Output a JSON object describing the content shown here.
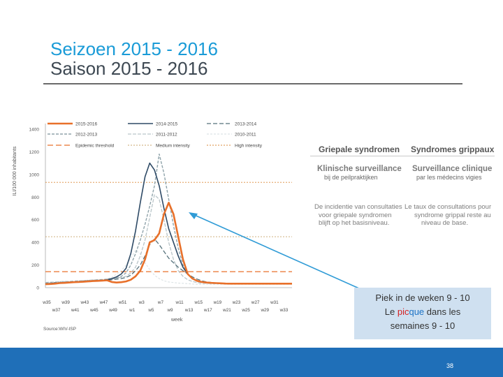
{
  "title": {
    "line1": "Seizoen 2015 - 2016",
    "line2": "Saison 2015 - 2016"
  },
  "panel": {
    "nl_title": "Griepale syndromen",
    "fr_title": "Syndromes grippaux",
    "nl_sub": "Klinische surveillance",
    "nl_subsmall": "bij de peilpraktijken",
    "fr_sub": "Surveillance clinique",
    "fr_subsmall": "par les médecins vigies",
    "nl_desc": [
      "De incidentie van consultaties",
      "voor griepale syndromen",
      "blijft op het basisniveau."
    ],
    "fr_desc": [
      "Le taux de consultations pour",
      "syndrome grippal reste au",
      "niveau de base."
    ]
  },
  "callout": {
    "line1": "Piek in de weken 9 - 10",
    "line2_a": "Le ",
    "line2_pic": "pic",
    "line2_que": "que",
    "line2_b": " dans les",
    "line3": "semaines 9 - 10"
  },
  "page_number": "38",
  "colors": {
    "s2015_2016": "#e8702a",
    "s2014_2015": "#2e4a66",
    "s2013_2014": "#55707a",
    "s2012_2013": "#8fa3aa",
    "s2011_2012": "#b9c5c9",
    "s2010_2011": "#dde4e6",
    "epidemic": "#e8702a",
    "medium": "#c9a46b",
    "high": "#d98a3a",
    "arrow": "#2f9bd6"
  },
  "chart_data": {
    "type": "line",
    "title": "",
    "ylabel": "ILI/100 000 inhabitants",
    "xlabel": "week",
    "source": "Source:WIV-ISP",
    "ylim": [
      0,
      1400
    ],
    "yticks": [
      "0",
      "200",
      "400",
      "600",
      "800",
      "1000",
      "1200",
      "1400"
    ],
    "xticks_top": [
      "w35",
      "w39",
      "w43",
      "w47",
      "w51",
      "w3",
      "w7",
      "w11",
      "w15",
      "w19",
      "w23",
      "w27",
      "w31"
    ],
    "xticks_bottom": [
      "w37",
      "w41",
      "w45",
      "w49",
      "w1",
      "w5",
      "w9",
      "w13",
      "w17",
      "w21",
      "w25",
      "w29",
      "w33"
    ],
    "n_weeks": 53,
    "legend": [
      "2015-2016",
      "2014-2015",
      "2013-2014",
      "2012-2013",
      "2011-2012",
      "2010-2011",
      "Epidemic threshold",
      "Medium intensity",
      "High intensity"
    ],
    "thresholds": {
      "epidemic": 141,
      "medium": 450,
      "high": 930
    },
    "series": [
      {
        "name": "2010-2011",
        "values": [
          40,
          42,
          45,
          48,
          50,
          50,
          52,
          55,
          58,
          60,
          62,
          65,
          70,
          80,
          90,
          120,
          150,
          200,
          260,
          330,
          300,
          220,
          160,
          110,
          80,
          60,
          50,
          45,
          40,
          38,
          35,
          32,
          30,
          30,
          30,
          30,
          30,
          30,
          30,
          30,
          30,
          30,
          30,
          30,
          30,
          30,
          30,
          30,
          30,
          30,
          30,
          30,
          30
        ]
      },
      {
        "name": "2011-2012",
        "values": [
          45,
          48,
          50,
          52,
          55,
          55,
          58,
          60,
          62,
          65,
          68,
          70,
          72,
          75,
          80,
          85,
          90,
          100,
          130,
          180,
          280,
          420,
          620,
          820,
          780,
          600,
          400,
          250,
          150,
          100,
          70,
          55,
          45,
          40,
          38,
          36,
          35,
          35,
          35,
          35,
          35,
          35,
          35,
          35,
          35,
          35,
          35,
          35,
          35,
          35,
          35,
          35,
          35
        ]
      },
      {
        "name": "2012-2013",
        "values": [
          40,
          42,
          45,
          48,
          50,
          52,
          55,
          58,
          60,
          62,
          65,
          68,
          70,
          72,
          75,
          85,
          100,
          130,
          200,
          300,
          420,
          560,
          720,
          900,
          1180,
          1010,
          780,
          550,
          350,
          200,
          120,
          80,
          60,
          50,
          45,
          40,
          38,
          36,
          35,
          35,
          35,
          35,
          35,
          35,
          35,
          35,
          35,
          35,
          35,
          35,
          35,
          35,
          35
        ]
      },
      {
        "name": "2013-2014",
        "values": [
          35,
          38,
          40,
          42,
          45,
          48,
          50,
          52,
          55,
          58,
          60,
          62,
          65,
          68,
          70,
          75,
          80,
          90,
          110,
          150,
          200,
          280,
          380,
          430,
          380,
          320,
          260,
          220,
          180,
          150,
          120,
          95,
          75,
          60,
          50,
          45,
          40,
          38,
          36,
          35,
          35,
          35,
          35,
          35,
          35,
          35,
          35,
          35,
          35,
          35,
          35,
          35,
          35
        ]
      },
      {
        "name": "2014-2015",
        "values": [
          30,
          35,
          40,
          42,
          45,
          48,
          50,
          52,
          55,
          58,
          60,
          62,
          65,
          70,
          80,
          95,
          120,
          170,
          300,
          500,
          750,
          980,
          1100,
          1040,
          900,
          700,
          520,
          400,
          280,
          180,
          120,
          80,
          60,
          50,
          45,
          42,
          40,
          38,
          36,
          35,
          35,
          35,
          35,
          35,
          35,
          35,
          35,
          35,
          35,
          35,
          35,
          35,
          35
        ]
      },
      {
        "name": "2015-2016",
        "values": [
          30,
          32,
          35,
          40,
          42,
          45,
          48,
          50,
          52,
          55,
          58,
          60,
          62,
          65,
          50,
          45,
          48,
          55,
          70,
          100,
          150,
          250,
          400,
          420,
          480,
          650,
          750,
          650,
          450,
          250,
          120,
          80,
          60,
          50,
          45,
          42,
          40,
          38,
          36,
          35,
          35,
          35,
          35,
          35,
          35,
          35,
          35,
          35,
          35,
          35,
          35,
          35,
          35
        ]
      }
    ]
  }
}
